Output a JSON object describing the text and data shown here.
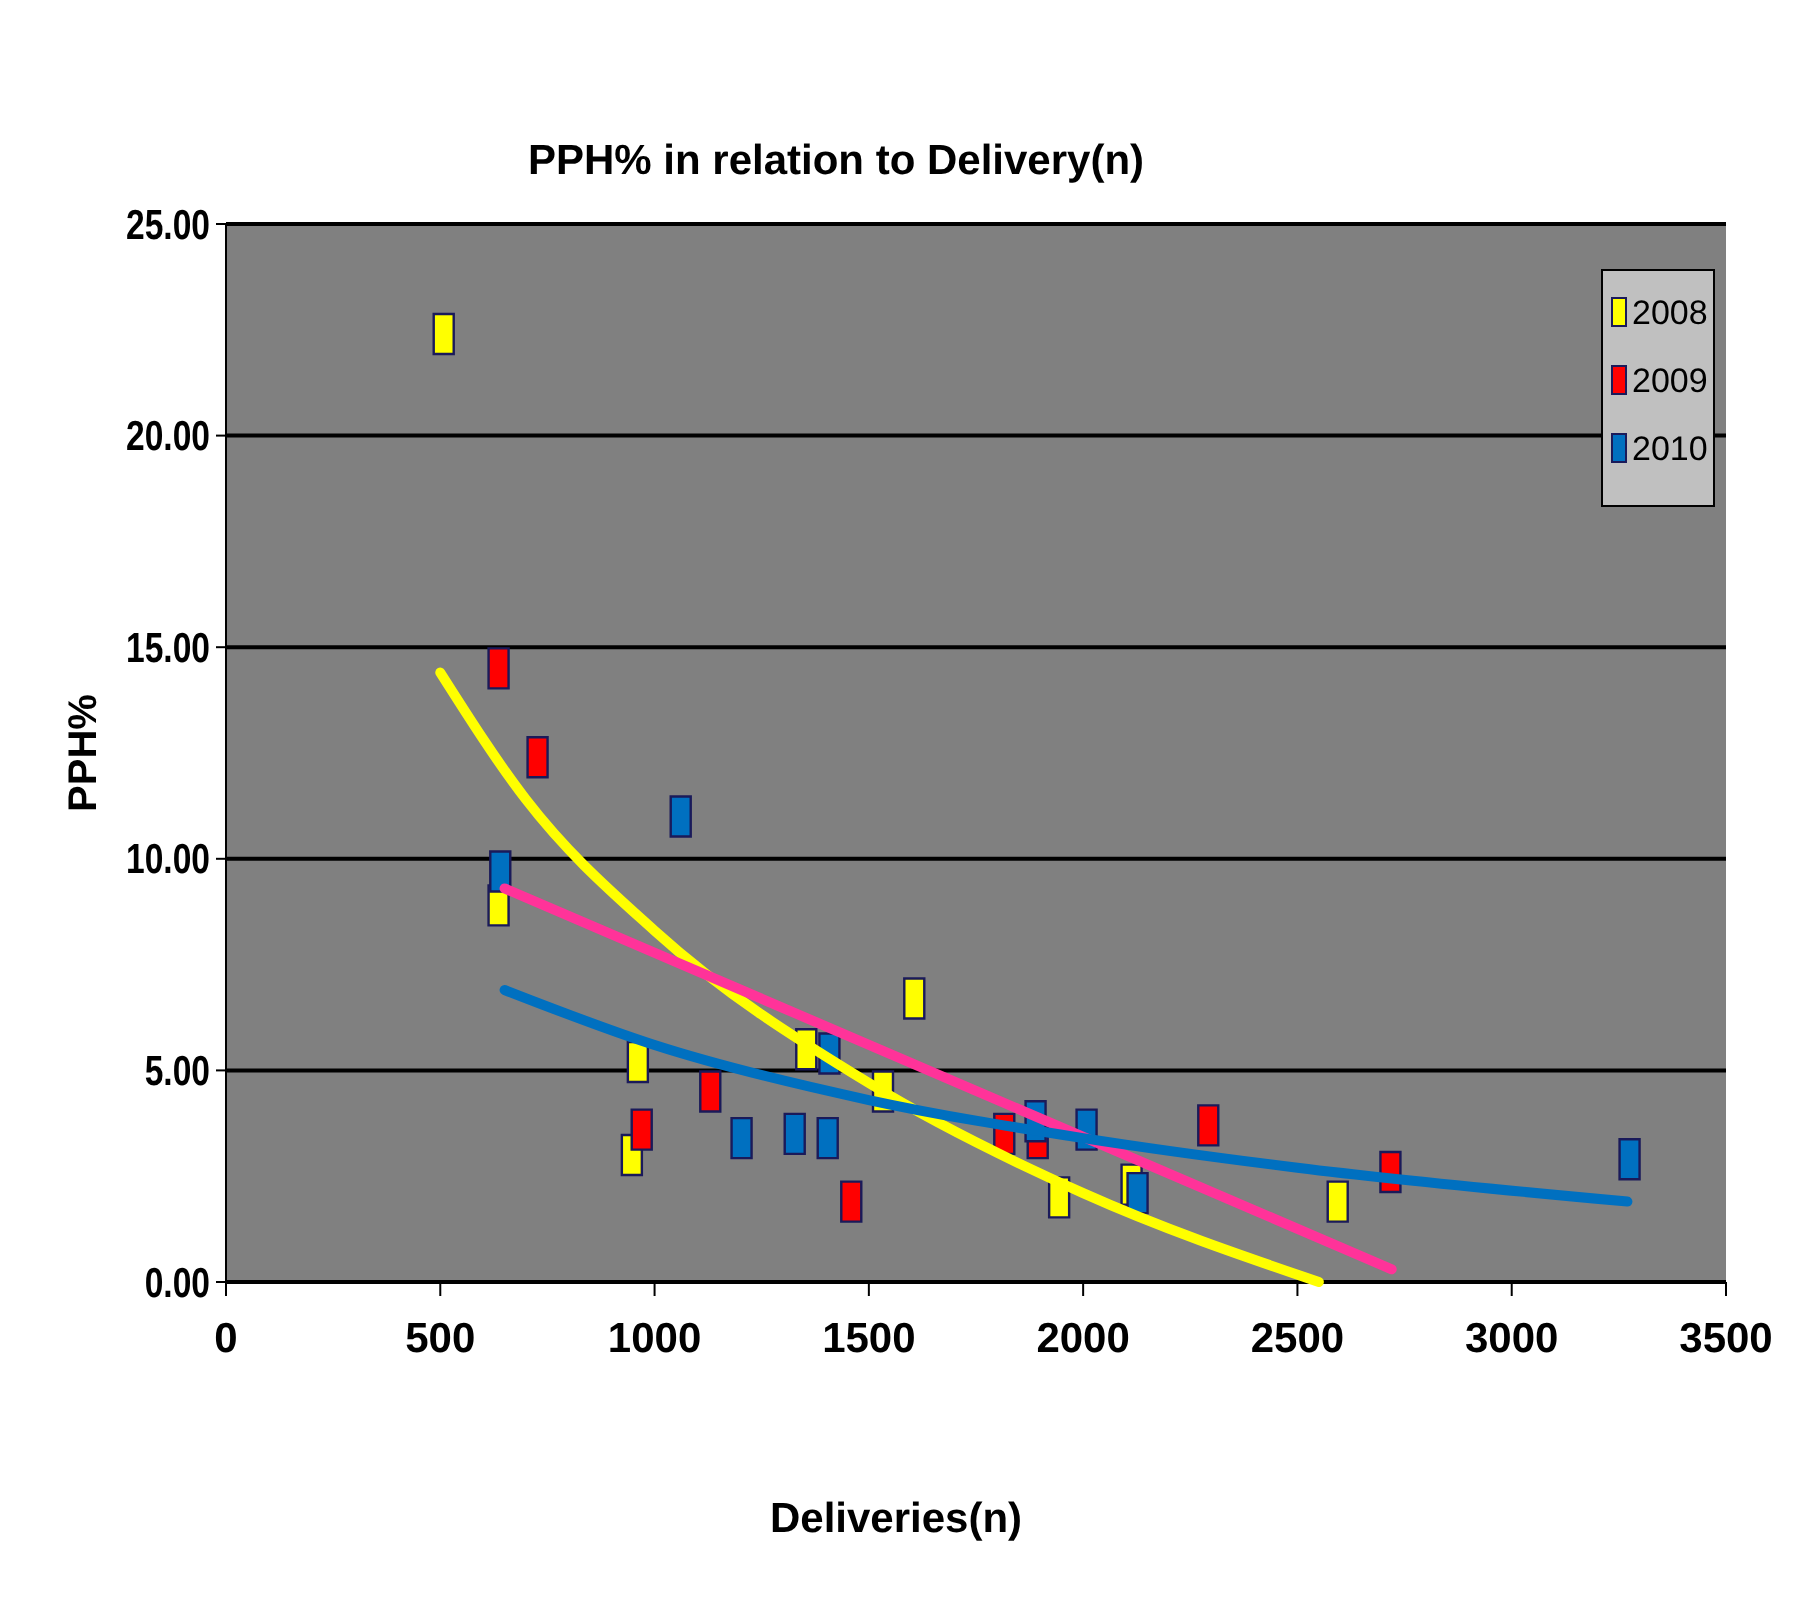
{
  "chart_data": {
    "type": "scatter",
    "title": "PPH% in relation to Delivery(n)",
    "xlabel": "Deliveries(n)",
    "ylabel": "PPH%",
    "xlim": [
      0,
      3500
    ],
    "xticks": [
      0,
      500,
      1000,
      1500,
      2000,
      2500,
      3000,
      3500
    ],
    "ylim": [
      0,
      25
    ],
    "yticks": [
      {
        "value": 0,
        "label": "0.00"
      },
      {
        "value": 5,
        "label": "5.00"
      },
      {
        "value": 10,
        "label": "10.00"
      },
      {
        "value": 15,
        "label": "15.00"
      },
      {
        "value": 20,
        "label": "20.00"
      },
      {
        "value": 25,
        "label": "25.00"
      }
    ],
    "grid": "y",
    "legend": "top right",
    "marker": "square",
    "series": [
      {
        "name": "2008",
        "color": "#ffff00",
        "x": [
          508,
          636,
          947,
          961,
          1354,
          1533,
          1606,
          1944,
          2113,
          2594
        ],
        "values": [
          22.4,
          8.9,
          3.0,
          5.2,
          5.5,
          4.5,
          6.7,
          2.0,
          2.3,
          1.9
        ]
      },
      {
        "name": "2009",
        "color": "#ff0000",
        "x": [
          636,
          727,
          970,
          1130,
          1459,
          1816,
          1894,
          2292,
          2717
        ],
        "values": [
          14.5,
          12.4,
          3.6,
          4.5,
          1.9,
          3.5,
          3.4,
          3.7,
          2.6
        ]
      },
      {
        "name": "2010",
        "color": "#0070c0",
        "x": [
          640,
          1061,
          1203,
          1327,
          1404,
          1408,
          1889,
          2008,
          2127,
          3275
        ],
        "values": [
          9.7,
          11.0,
          3.4,
          3.5,
          3.4,
          5.4,
          3.8,
          3.6,
          2.1,
          2.9
        ]
      },
      {
        "type": "line",
        "marker": "none",
        "color": "#ffff00",
        "x": [
          500,
          700,
          1000,
          1500,
          2000,
          2550
        ],
        "values": [
          14.4,
          11.4,
          8.3,
          4.7,
          2.1,
          0
        ]
      },
      {
        "type": "line",
        "marker": "none",
        "color": "#ff3399",
        "x": [
          650,
          2720
        ],
        "values": [
          9.3,
          0.3
        ]
      },
      {
        "type": "line",
        "marker": "none",
        "color": "#0070c0",
        "x": [
          650,
          1000,
          1500,
          2000,
          2500,
          3270
        ],
        "values": [
          6.9,
          5.6,
          4.3,
          3.4,
          2.7,
          1.9
        ]
      }
    ]
  }
}
